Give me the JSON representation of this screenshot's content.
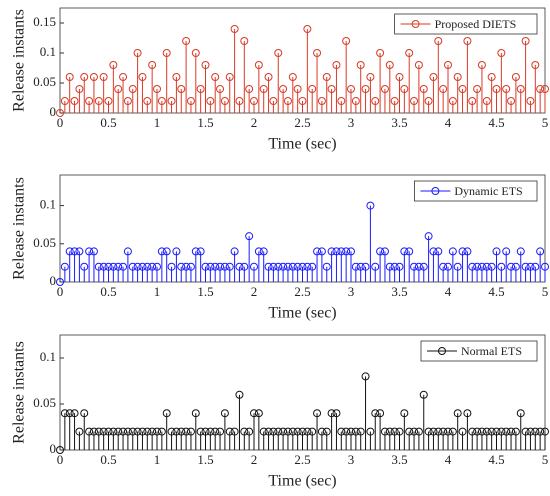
{
  "chart_data": [
    {
      "type": "stem",
      "xlabel": "Time (sec)",
      "ylabel": "Release instants",
      "legend": "upper right",
      "x": [
        0,
        0.05,
        0.1,
        0.15,
        0.2,
        0.25,
        0.3,
        0.35,
        0.4,
        0.45,
        0.5,
        0.55,
        0.6,
        0.65,
        0.7,
        0.75,
        0.8,
        0.85,
        0.9,
        0.95,
        1,
        1.05,
        1.1,
        1.15,
        1.2,
        1.25,
        1.3,
        1.35,
        1.4,
        1.45,
        1.5,
        1.55,
        1.6,
        1.65,
        1.7,
        1.75,
        1.8,
        1.85,
        1.9,
        1.95,
        2,
        2.05,
        2.1,
        2.15,
        2.2,
        2.25,
        2.3,
        2.35,
        2.4,
        2.45,
        2.5,
        2.55,
        2.6,
        2.65,
        2.7,
        2.75,
        2.8,
        2.85,
        2.9,
        2.95,
        3,
        3.05,
        3.1,
        3.15,
        3.2,
        3.25,
        3.3,
        3.35,
        3.4,
        3.45,
        3.5,
        3.55,
        3.6,
        3.65,
        3.7,
        3.75,
        3.8,
        3.85,
        3.9,
        3.95,
        4,
        4.05,
        4.1,
        4.15,
        4.2,
        4.25,
        4.3,
        4.35,
        4.4,
        4.45,
        4.5,
        4.55,
        4.6,
        4.65,
        4.7,
        4.75,
        4.8,
        4.85,
        4.9,
        4.95,
        5
      ],
      "series": [
        {
          "name": "Proposed DIETS",
          "color": "#d93a26",
          "values": [
            0,
            0.02,
            0.06,
            0.02,
            0.04,
            0.06,
            0.02,
            0.06,
            0.02,
            0.06,
            0.02,
            0.08,
            0.04,
            0.06,
            0.02,
            0.04,
            0.1,
            0.06,
            0.02,
            0.08,
            0.04,
            0.02,
            0.1,
            0.02,
            0.06,
            0.04,
            0.12,
            0.02,
            0.1,
            0.04,
            0.08,
            0.02,
            0.06,
            0.04,
            0.02,
            0.06,
            0.14,
            0.02,
            0.12,
            0.04,
            0.02,
            0.08,
            0.04,
            0.06,
            0.02,
            0.1,
            0.04,
            0.02,
            0.06,
            0.04,
            0.02,
            0.14,
            0.04,
            0.1,
            0.02,
            0.06,
            0.04,
            0.08,
            0.02,
            0.12,
            0.04,
            0.02,
            0.08,
            0.04,
            0.06,
            0.02,
            0.1,
            0.04,
            0.08,
            0.02,
            0.06,
            0.04,
            0.1,
            0.02,
            0.08,
            0.04,
            0.02,
            0.06,
            0.12,
            0.04,
            0.08,
            0.02,
            0.06,
            0.04,
            0.12,
            0.02,
            0.04,
            0.08,
            0.02,
            0.06,
            0.04,
            0.1,
            0.04,
            0.02,
            0.06,
            0.04,
            0.12,
            0.02,
            0.08,
            0.04,
            0.04
          ]
        }
      ],
      "xlim": [
        0,
        5
      ],
      "xticks": [
        0,
        0.5,
        1,
        1.5,
        2,
        2.5,
        3,
        3.5,
        4,
        4.5,
        5
      ],
      "ylim": [
        0,
        0.175
      ],
      "yticks": [
        0,
        0.05,
        0.1,
        0.15
      ]
    },
    {
      "type": "stem",
      "xlabel": "Time (sec)",
      "ylabel": "Release instants",
      "legend": "upper right",
      "x": [
        0,
        0.05,
        0.1,
        0.15,
        0.2,
        0.25,
        0.3,
        0.35,
        0.4,
        0.45,
        0.5,
        0.55,
        0.6,
        0.65,
        0.7,
        0.75,
        0.8,
        0.85,
        0.9,
        0.95,
        1,
        1.05,
        1.1,
        1.15,
        1.2,
        1.25,
        1.3,
        1.35,
        1.4,
        1.45,
        1.5,
        1.55,
        1.6,
        1.65,
        1.7,
        1.75,
        1.8,
        1.85,
        1.9,
        1.95,
        2,
        2.05,
        2.1,
        2.15,
        2.2,
        2.25,
        2.3,
        2.35,
        2.4,
        2.45,
        2.5,
        2.55,
        2.6,
        2.65,
        2.7,
        2.75,
        2.8,
        2.85,
        2.9,
        2.95,
        3,
        3.05,
        3.1,
        3.15,
        3.2,
        3.25,
        3.3,
        3.35,
        3.4,
        3.45,
        3.5,
        3.55,
        3.6,
        3.65,
        3.7,
        3.75,
        3.8,
        3.85,
        3.9,
        3.95,
        4,
        4.05,
        4.1,
        4.15,
        4.2,
        4.25,
        4.3,
        4.35,
        4.4,
        4.45,
        4.5,
        4.55,
        4.6,
        4.65,
        4.7,
        4.75,
        4.8,
        4.85,
        4.9,
        4.95,
        5
      ],
      "series": [
        {
          "name": "Dynamic ETS",
          "color": "#1a1aff",
          "values": [
            0,
            0.02,
            0.04,
            0.04,
            0.04,
            0.02,
            0.04,
            0.04,
            0.02,
            0.02,
            0.02,
            0.02,
            0.02,
            0.02,
            0.04,
            0.02,
            0.02,
            0.02,
            0.02,
            0.02,
            0.02,
            0.04,
            0.04,
            0.02,
            0.04,
            0.02,
            0.02,
            0.02,
            0.04,
            0.04,
            0.02,
            0.02,
            0.02,
            0.02,
            0.02,
            0.02,
            0.04,
            0.02,
            0.02,
            0.06,
            0.02,
            0.04,
            0.04,
            0.02,
            0.02,
            0.02,
            0.02,
            0.02,
            0.02,
            0.02,
            0.02,
            0.02,
            0.02,
            0.04,
            0.04,
            0.02,
            0.04,
            0.04,
            0.04,
            0.04,
            0.04,
            0.02,
            0.02,
            0.02,
            0.1,
            0.02,
            0.04,
            0.04,
            0.02,
            0.02,
            0.02,
            0.04,
            0.04,
            0.02,
            0.02,
            0.02,
            0.06,
            0.04,
            0.04,
            0.02,
            0.02,
            0.04,
            0.02,
            0.04,
            0.04,
            0.02,
            0.02,
            0.02,
            0.02,
            0.02,
            0.04,
            0.02,
            0.04,
            0.02,
            0.02,
            0.04,
            0.02,
            0.02,
            0.02,
            0.04,
            0.02
          ]
        }
      ],
      "xlim": [
        0,
        5
      ],
      "xticks": [
        0,
        0.5,
        1,
        1.5,
        2,
        2.5,
        3,
        3.5,
        4,
        4.5,
        5
      ],
      "ylim": [
        0,
        0.14
      ],
      "yticks": [
        0,
        0.05,
        0.1
      ]
    },
    {
      "type": "stem",
      "xlabel": "Time (sec)",
      "ylabel": "Release instants",
      "legend": "upper right",
      "x": [
        0,
        0.05,
        0.1,
        0.15,
        0.2,
        0.25,
        0.3,
        0.35,
        0.4,
        0.45,
        0.5,
        0.55,
        0.6,
        0.65,
        0.7,
        0.75,
        0.8,
        0.85,
        0.9,
        0.95,
        1,
        1.05,
        1.1,
        1.15,
        1.2,
        1.25,
        1.3,
        1.35,
        1.4,
        1.45,
        1.5,
        1.55,
        1.6,
        1.65,
        1.7,
        1.75,
        1.8,
        1.85,
        1.9,
        1.95,
        2,
        2.05,
        2.1,
        2.15,
        2.2,
        2.25,
        2.3,
        2.35,
        2.4,
        2.45,
        2.5,
        2.55,
        2.6,
        2.65,
        2.7,
        2.75,
        2.8,
        2.85,
        2.9,
        2.95,
        3,
        3.05,
        3.1,
        3.15,
        3.2,
        3.25,
        3.3,
        3.35,
        3.4,
        3.45,
        3.5,
        3.55,
        3.6,
        3.65,
        3.7,
        3.75,
        3.8,
        3.85,
        3.9,
        3.95,
        4,
        4.05,
        4.1,
        4.15,
        4.2,
        4.25,
        4.3,
        4.35,
        4.4,
        4.45,
        4.5,
        4.55,
        4.6,
        4.65,
        4.7,
        4.75,
        4.8,
        4.85,
        4.9,
        4.95,
        5
      ],
      "series": [
        {
          "name": "Normal ETS",
          "color": "#111111",
          "values": [
            0,
            0.04,
            0.04,
            0.04,
            0.02,
            0.04,
            0.02,
            0.02,
            0.02,
            0.02,
            0.02,
            0.02,
            0.02,
            0.02,
            0.02,
            0.02,
            0.02,
            0.02,
            0.02,
            0.02,
            0.02,
            0.02,
            0.04,
            0.02,
            0.02,
            0.02,
            0.02,
            0.02,
            0.04,
            0.02,
            0.02,
            0.02,
            0.02,
            0.02,
            0.04,
            0.02,
            0.02,
            0.06,
            0.02,
            0.02,
            0.04,
            0.04,
            0.02,
            0.02,
            0.02,
            0.02,
            0.02,
            0.02,
            0.02,
            0.02,
            0.02,
            0.02,
            0.02,
            0.04,
            0.02,
            0.02,
            0.04,
            0.04,
            0.02,
            0.02,
            0.02,
            0.02,
            0.02,
            0.08,
            0.02,
            0.04,
            0.04,
            0.02,
            0.02,
            0.02,
            0.02,
            0.04,
            0.02,
            0.02,
            0.02,
            0.06,
            0.02,
            0.02,
            0.02,
            0.02,
            0.02,
            0.02,
            0.04,
            0.02,
            0.04,
            0.02,
            0.02,
            0.02,
            0.02,
            0.02,
            0.02,
            0.02,
            0.02,
            0.02,
            0.02,
            0.04,
            0.02,
            0.02,
            0.02,
            0.02,
            0.02
          ]
        }
      ],
      "xlim": [
        0,
        5
      ],
      "xticks": [
        0,
        0.5,
        1,
        1.5,
        2,
        2.5,
        3,
        3.5,
        4,
        4.5,
        5
      ],
      "ylim": [
        0,
        0.125
      ],
      "yticks": [
        0,
        0.05,
        0.1
      ]
    }
  ]
}
